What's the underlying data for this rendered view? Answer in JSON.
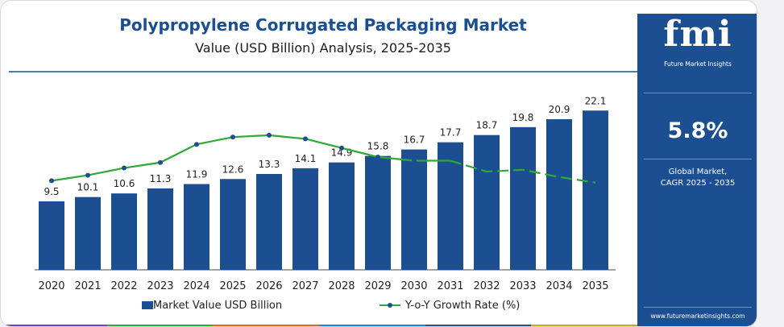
{
  "chart_data": {
    "type": "bar",
    "title": "Polypropylene Corrugated Packaging Market",
    "subtitle": "Value (USD Billion) Analysis, 2025-2035",
    "categories": [
      "2020",
      "2021",
      "2022",
      "2023",
      "2024",
      "2025",
      "2026",
      "2027",
      "2028",
      "2029",
      "2030",
      "2031",
      "2032",
      "2033",
      "2034",
      "2035"
    ],
    "series": [
      {
        "name": "Market Value USD Billion",
        "type": "bar",
        "values": [
          9.5,
          10.1,
          10.6,
          11.3,
          11.9,
          12.6,
          13.3,
          14.1,
          14.9,
          15.8,
          16.7,
          17.7,
          18.7,
          19.8,
          20.9,
          22.1
        ],
        "labels": [
          "9.5",
          "10.1",
          "10.6",
          "11.3",
          "11.9",
          "12.6",
          "13.3",
          "14.1",
          "14.9",
          "15.8",
          "16.7",
          "17.7",
          "18.7",
          "19.8",
          "20.9",
          "22.1"
        ]
      },
      {
        "name": "Y-o-Y Growth Rate (%)",
        "type": "line",
        "values": [
          4.9,
          5.2,
          5.6,
          5.9,
          6.9,
          7.3,
          7.4,
          7.2,
          6.7,
          6.2,
          6.0,
          6.0,
          5.4,
          5.5,
          5.1,
          4.8
        ],
        "dashed_from_index": 11
      }
    ],
    "ylim": [
      0,
      22.8
    ],
    "growth_ylim": [
      0,
      9.3
    ],
    "legend_position": "bottom",
    "grid": false
  },
  "colors": {
    "bar": "#1c4f92",
    "line": "#2ea836",
    "title": "#1b4f93",
    "sidebar": "#1c4f92"
  },
  "sidebar": {
    "logo_text": "fmi",
    "logo_subtext": "Future Market Insights",
    "cagr_value": "5.8%",
    "cagr_label_line1": "Global Market,",
    "cagr_label_line2": "CAGR 2025 - 2035",
    "website": "www.futuremarketinsights.com"
  },
  "stripe_colors": [
    "#7a3db8",
    "#2ea836",
    "#e06a1b",
    "#2a7dc9",
    "#1c4f92",
    "#d8a21d"
  ]
}
